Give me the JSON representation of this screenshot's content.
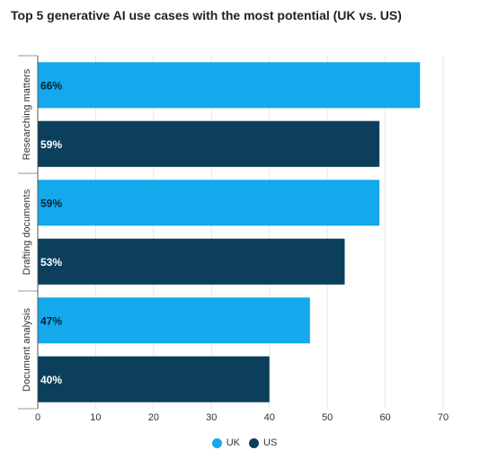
{
  "title": "Top 5 generative AI use cases with the most potential (UK vs. US)",
  "colors": {
    "UK": "#14a8ec",
    "US": "#0b3f5c"
  },
  "chart_data": {
    "type": "bar",
    "orientation": "horizontal",
    "categories": [
      "Researching matters",
      "Drafting documents",
      "Document analysis"
    ],
    "series": [
      {
        "name": "UK",
        "values": [
          66,
          59,
          47
        ],
        "labels": [
          "66%",
          "59%",
          "47%"
        ]
      },
      {
        "name": "US",
        "values": [
          59,
          53,
          40
        ],
        "labels": [
          "59%",
          "53%",
          "40%"
        ]
      }
    ],
    "xlim": [
      0,
      70
    ],
    "xticks": [
      0,
      10,
      20,
      30,
      40,
      50,
      60,
      70
    ],
    "grid": true,
    "legend_position": "bottom-center"
  }
}
